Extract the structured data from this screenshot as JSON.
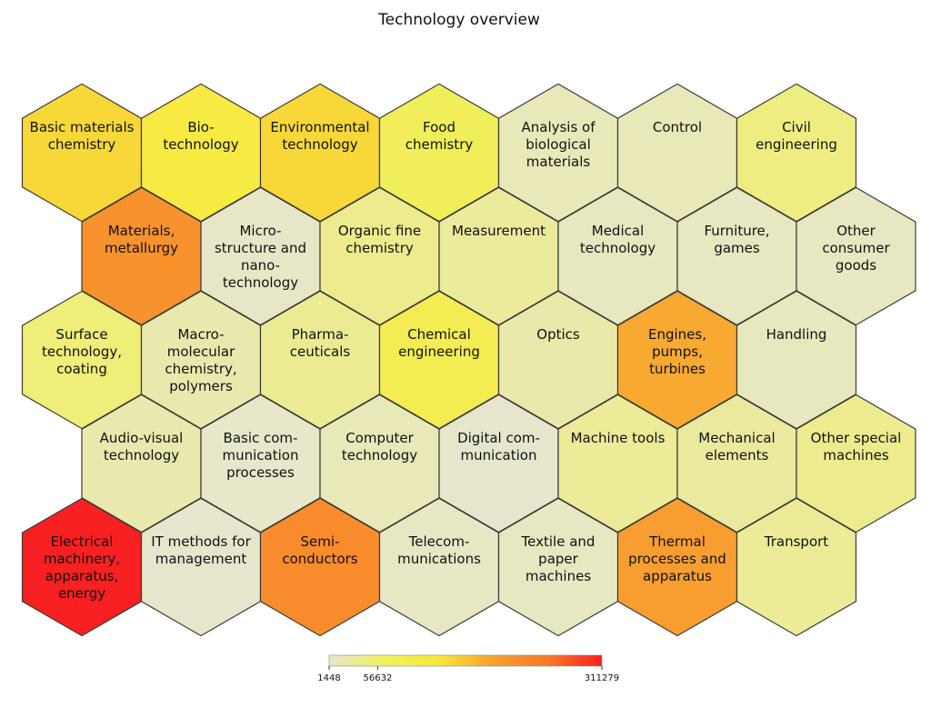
{
  "chart_data": {
    "type": "hexbin-map",
    "title": "Technology overview",
    "color_scale": {
      "min": 1448,
      "max": 311279,
      "ticks": [
        1448,
        56632,
        311279
      ],
      "colors": [
        "#e6e6cf",
        "#f0f060",
        "#f8e83a",
        "#f8a030",
        "#f87a28",
        "#f82020"
      ]
    },
    "cells": [
      {
        "label": "Basic materials chemistry",
        "lines": [
          "Basic materials",
          "chemistry"
        ],
        "row": 0,
        "col": 0,
        "value": 140000
      },
      {
        "label": "Bio- technology",
        "lines": [
          "Bio-",
          "technology"
        ],
        "row": 0,
        "col": 1,
        "value": 110000
      },
      {
        "label": "Environmental technology",
        "lines": [
          "Environmental",
          "technology"
        ],
        "row": 0,
        "col": 2,
        "value": 140000
      },
      {
        "label": "Food chemistry",
        "lines": [
          "Food",
          "chemistry"
        ],
        "row": 0,
        "col": 3,
        "value": 75000
      },
      {
        "label": "Analysis of biological materials",
        "lines": [
          "Analysis of",
          "biological",
          "materials"
        ],
        "row": 0,
        "col": 4,
        "value": 14000
      },
      {
        "label": "Control",
        "lines": [
          "Control"
        ],
        "row": 0,
        "col": 5,
        "value": 14000
      },
      {
        "label": "Civil engineering",
        "lines": [
          "Civil",
          "engineering"
        ],
        "row": 0,
        "col": 6,
        "value": 45000
      },
      {
        "label": "Materials, metallurgy",
        "lines": [
          "Materials,",
          "metallurgy"
        ],
        "row": 1,
        "col": 0,
        "value": 210000
      },
      {
        "label": "Micro- structure and nano- technology",
        "lines": [
          "Micro-",
          "structure and",
          "nano-",
          "technology"
        ],
        "row": 1,
        "col": 1,
        "value": 6000
      },
      {
        "label": "Organic fine chemistry",
        "lines": [
          "Organic fine",
          "chemistry"
        ],
        "row": 1,
        "col": 2,
        "value": 38000
      },
      {
        "label": "Measurement",
        "lines": [
          "Measurement"
        ],
        "row": 1,
        "col": 3,
        "value": 30000
      },
      {
        "label": "Medical technology",
        "lines": [
          "Medical",
          "technology"
        ],
        "row": 1,
        "col": 4,
        "value": 10000
      },
      {
        "label": "Furniture, games",
        "lines": [
          "Furniture,",
          "games"
        ],
        "row": 1,
        "col": 5,
        "value": 9000
      },
      {
        "label": "Other consumer goods",
        "lines": [
          "Other",
          "consumer",
          "goods"
        ],
        "row": 1,
        "col": 6,
        "value": 9000
      },
      {
        "label": "Surface technology, coating",
        "lines": [
          "Surface",
          "technology,",
          "coating"
        ],
        "row": 2,
        "col": 0,
        "value": 50000
      },
      {
        "label": "Macro- molecular chemistry, polymers",
        "lines": [
          "Macro-",
          "molecular",
          "chemistry,",
          "polymers"
        ],
        "row": 2,
        "col": 1,
        "value": 20000
      },
      {
        "label": "Pharma- ceuticals",
        "lines": [
          "Pharma-",
          "ceuticals"
        ],
        "row": 2,
        "col": 2,
        "value": 35000
      },
      {
        "label": "Chemical engineering",
        "lines": [
          "Chemical",
          "engineering"
        ],
        "row": 2,
        "col": 3,
        "value": 85000
      },
      {
        "label": "Optics",
        "lines": [
          "Optics"
        ],
        "row": 2,
        "col": 4,
        "value": 22000
      },
      {
        "label": "Engines, pumps, turbines",
        "lines": [
          "Engines,",
          "pumps,",
          "turbines"
        ],
        "row": 2,
        "col": 5,
        "value": 180000
      },
      {
        "label": "Handling",
        "lines": [
          "Handling"
        ],
        "row": 2,
        "col": 6,
        "value": 11000
      },
      {
        "label": "Audio-visual technology",
        "lines": [
          "Audio-visual",
          "technology"
        ],
        "row": 3,
        "col": 0,
        "value": 20000
      },
      {
        "label": "Basic com- munication processes",
        "lines": [
          "Basic com-",
          "munication",
          "processes"
        ],
        "row": 3,
        "col": 1,
        "value": 5000
      },
      {
        "label": "Computer technology",
        "lines": [
          "Computer",
          "technology"
        ],
        "row": 3,
        "col": 2,
        "value": 14000
      },
      {
        "label": "Digital com- munication",
        "lines": [
          "Digital com-",
          "munication"
        ],
        "row": 3,
        "col": 3,
        "value": 3000
      },
      {
        "label": "Machine tools",
        "lines": [
          "Machine tools"
        ],
        "row": 3,
        "col": 4,
        "value": 32000
      },
      {
        "label": "Mechanical elements",
        "lines": [
          "Mechanical",
          "elements"
        ],
        "row": 3,
        "col": 5,
        "value": 28000
      },
      {
        "label": "Other special machines",
        "lines": [
          "Other special",
          "machines"
        ],
        "row": 3,
        "col": 6,
        "value": 38000
      },
      {
        "label": "Electrical machinery, apparatus, energy",
        "lines": [
          "Electrical",
          "machinery,",
          "apparatus,",
          "energy"
        ],
        "row": 4,
        "col": 0,
        "value": 311279
      },
      {
        "label": "IT methods for management",
        "lines": [
          "IT methods for",
          "management"
        ],
        "row": 4,
        "col": 1,
        "value": 2500
      },
      {
        "label": "Semi- conductors",
        "lines": [
          "Semi-",
          "conductors"
        ],
        "row": 4,
        "col": 2,
        "value": 220000
      },
      {
        "label": "Telecom- munications",
        "lines": [
          "Telecom-",
          "munications"
        ],
        "row": 4,
        "col": 3,
        "value": 7000
      },
      {
        "label": "Textile and paper machines",
        "lines": [
          "Textile and",
          "paper",
          "machines"
        ],
        "row": 4,
        "col": 4,
        "value": 9000
      },
      {
        "label": "Thermal processes and apparatus",
        "lines": [
          "Thermal",
          "processes and",
          "apparatus"
        ],
        "row": 4,
        "col": 5,
        "value": 190000
      },
      {
        "label": "Transport",
        "lines": [
          "Transport"
        ],
        "row": 4,
        "col": 6,
        "value": 32000
      }
    ]
  }
}
